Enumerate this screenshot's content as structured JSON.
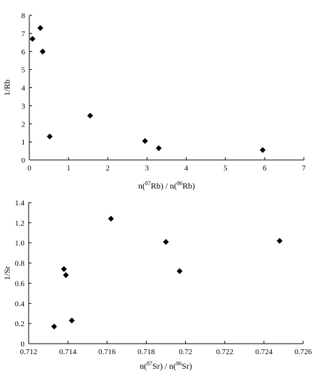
{
  "chart_data": [
    {
      "type": "scatter",
      "title": "",
      "xlabel_parts": [
        "n(",
        "87",
        "Rb) / n(",
        "86",
        "Rb)"
      ],
      "ylabel": "1/Rb",
      "xlim": [
        0,
        7
      ],
      "ylim": [
        0,
        8
      ],
      "xticks": [
        "0",
        "1",
        "2",
        "3",
        "4",
        "5",
        "6",
        "7"
      ],
      "yticks": [
        "0",
        "1",
        "2",
        "3",
        "4",
        "5",
        "6",
        "7",
        "8"
      ],
      "grid": false,
      "points": [
        {
          "x": 0.08,
          "y": 6.7
        },
        {
          "x": 0.28,
          "y": 7.3
        },
        {
          "x": 0.34,
          "y": 6.0
        },
        {
          "x": 0.52,
          "y": 1.3
        },
        {
          "x": 1.55,
          "y": 2.45
        },
        {
          "x": 2.95,
          "y": 1.05
        },
        {
          "x": 3.3,
          "y": 0.65
        },
        {
          "x": 5.95,
          "y": 0.55
        }
      ]
    },
    {
      "type": "scatter",
      "title": "",
      "xlabel_parts": [
        "n(",
        "87",
        "Sr) / n(",
        "86",
        "Sr)"
      ],
      "ylabel": "1/Sr",
      "xlim": [
        0.712,
        0.726
      ],
      "ylim": [
        0,
        1.4
      ],
      "xticks": [
        "0.712",
        "0.714",
        "0.716",
        "0.718",
        "0.72",
        "0.722",
        "0.724",
        "0.726"
      ],
      "yticks": [
        "0",
        "0.2",
        "0.4",
        "0.6",
        "0.8",
        "1.0",
        "1.2",
        "1.4"
      ],
      "grid": false,
      "points": [
        {
          "x": 0.7133,
          "y": 0.17
        },
        {
          "x": 0.7138,
          "y": 0.74
        },
        {
          "x": 0.7139,
          "y": 0.68
        },
        {
          "x": 0.7142,
          "y": 0.23
        },
        {
          "x": 0.7162,
          "y": 1.24
        },
        {
          "x": 0.719,
          "y": 1.01
        },
        {
          "x": 0.7197,
          "y": 0.72
        },
        {
          "x": 0.7248,
          "y": 1.02
        }
      ]
    }
  ]
}
